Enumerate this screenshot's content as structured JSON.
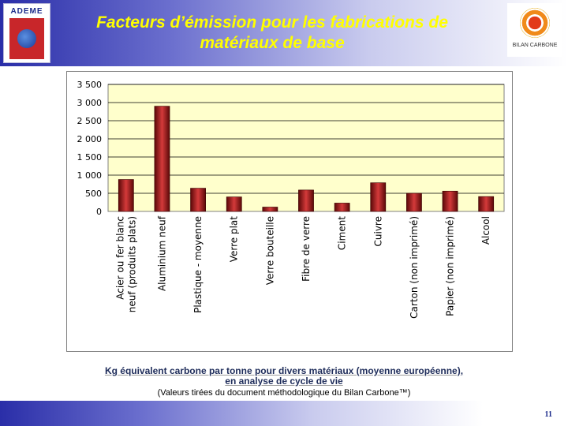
{
  "header": {
    "logo_left": "ADEME",
    "title_line1": "Facteurs d’émission pour les fabrications de",
    "title_line2": "matériaux de base",
    "logo_right": "BILAN CARBONE"
  },
  "chart_data": {
    "type": "bar",
    "categories": [
      "Acier ou fer blanc neuf (produits plats)",
      "Aluminium neuf",
      "Plastique - moyenne",
      "Verre plat",
      "Verre bouteille",
      "Fibre de verre",
      "Ciment",
      "Cuivre",
      "Carton (non imprimé)",
      "Papier (non imprimé)",
      "Alcool"
    ],
    "values": [
      880,
      2900,
      640,
      400,
      120,
      590,
      230,
      790,
      500,
      560,
      410
    ],
    "yticks": [
      "0",
      "500",
      "1 000",
      "1 500",
      "2 000",
      "2 500",
      "3 000",
      "3 500"
    ],
    "ylim": [
      0,
      3500
    ],
    "grid": true,
    "colors": {
      "plot_bg": "#ffffcc",
      "bar": "#9a1010",
      "bar_dark": "#5a0808",
      "bar_light": "#d43a3a"
    }
  },
  "caption": {
    "line1": "Kg équivalent carbone par tonne pour divers matériaux (moyenne européenne),",
    "line2": "en analyse de cycle de vie",
    "source": "(Valeurs tirées du document méthodologique du Bilan Carbone™)"
  },
  "footer": {
    "page": "11"
  }
}
